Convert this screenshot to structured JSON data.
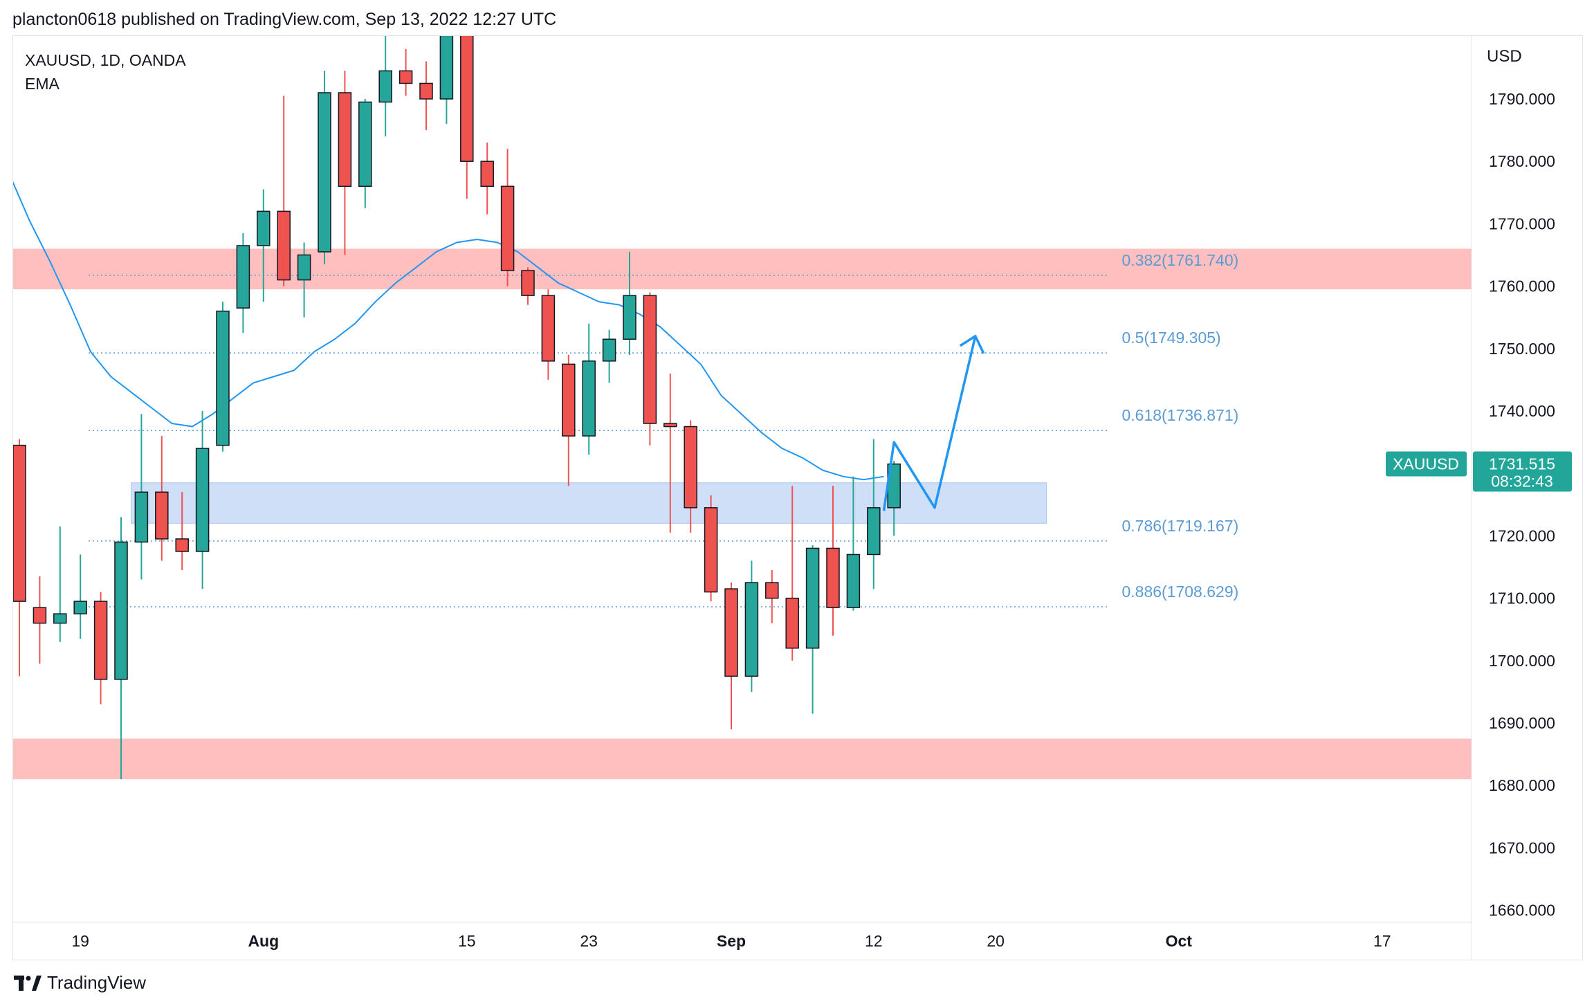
{
  "header": {
    "published_text": "plancton0618 published on TradingView.com, Sep 13, 2022 12:27 UTC"
  },
  "legend": {
    "symbol_line": "XAUUSD, 1D, OANDA",
    "indicator": "EMA"
  },
  "footer": {
    "brand": "TradingView"
  },
  "colors": {
    "up": "#26a69a",
    "down": "#ef5350",
    "zone_red": "#ffbfbf",
    "zone_blue": "#c9dcf7",
    "ema": "#2196f3",
    "fib": "#5b9bd5",
    "price_tag": "#22a69a"
  },
  "chart_data": {
    "type": "candlestick",
    "currency_label": "USD",
    "ylim": [
      1656,
      1797
    ],
    "y_ticks": [
      "1790.000",
      "1780.000",
      "1770.000",
      "1760.000",
      "1750.000",
      "1740.000",
      "1730.000",
      "1720.000",
      "1710.000",
      "1700.000",
      "1690.000",
      "1680.000",
      "1670.000",
      "1660.000"
    ],
    "x_ticks": [
      {
        "label": "19",
        "i": 3
      },
      {
        "label": "Aug",
        "i": 12,
        "bold": true
      },
      {
        "label": "15",
        "i": 22
      },
      {
        "label": "23",
        "i": 28
      },
      {
        "label": "Sep",
        "i": 35,
        "bold": true
      },
      {
        "label": "12",
        "i": 42
      },
      {
        "label": "20",
        "i": 48
      },
      {
        "label": "Oct",
        "i": 57,
        "bold": true
      },
      {
        "label": "17",
        "i": 67
      }
    ],
    "candles": [
      {
        "o": 1734.5,
        "h": 1735.5,
        "l": 1697.5,
        "c": 1709.5
      },
      {
        "o": 1708.5,
        "h": 1713.5,
        "l": 1699.5,
        "c": 1706.0
      },
      {
        "o": 1706.0,
        "h": 1721.5,
        "l": 1703.0,
        "c": 1707.5
      },
      {
        "o": 1707.5,
        "h": 1717.0,
        "l": 1703.5,
        "c": 1709.5
      },
      {
        "o": 1709.5,
        "h": 1711.0,
        "l": 1693.0,
        "c": 1697.0
      },
      {
        "o": 1697.0,
        "h": 1723.0,
        "l": 1681.0,
        "c": 1719.0
      },
      {
        "o": 1719.0,
        "h": 1739.5,
        "l": 1713.0,
        "c": 1727.0
      },
      {
        "o": 1727.0,
        "h": 1736.0,
        "l": 1716.0,
        "c": 1719.5
      },
      {
        "o": 1719.5,
        "h": 1727.0,
        "l": 1714.5,
        "c": 1717.5
      },
      {
        "o": 1717.5,
        "h": 1740.0,
        "l": 1711.5,
        "c": 1734.0
      },
      {
        "o": 1734.5,
        "h": 1757.5,
        "l": 1733.5,
        "c": 1756.0
      },
      {
        "o": 1756.5,
        "h": 1768.5,
        "l": 1752.5,
        "c": 1766.5
      },
      {
        "o": 1766.5,
        "h": 1775.5,
        "l": 1757.5,
        "c": 1772.0
      },
      {
        "o": 1772.0,
        "h": 1790.5,
        "l": 1760.0,
        "c": 1761.0
      },
      {
        "o": 1761.0,
        "h": 1767.0,
        "l": 1755.0,
        "c": 1765.0
      },
      {
        "o": 1765.5,
        "h": 1794.5,
        "l": 1763.5,
        "c": 1791.0
      },
      {
        "o": 1791.0,
        "h": 1794.5,
        "l": 1765.0,
        "c": 1776.0
      },
      {
        "o": 1776.0,
        "h": 1790.0,
        "l": 1772.5,
        "c": 1789.5
      },
      {
        "o": 1789.5,
        "h": 1802.0,
        "l": 1784.0,
        "c": 1794.5
      },
      {
        "o": 1794.5,
        "h": 1798.0,
        "l": 1790.5,
        "c": 1792.5
      },
      {
        "o": 1792.5,
        "h": 1796.0,
        "l": 1785.0,
        "c": 1790.0
      },
      {
        "o": 1790.0,
        "h": 1805.0,
        "l": 1786.0,
        "c": 1803.0
      },
      {
        "o": 1803.0,
        "h": 1805.0,
        "l": 1774.0,
        "c": 1780.0
      },
      {
        "o": 1780.0,
        "h": 1783.0,
        "l": 1771.5,
        "c": 1776.0
      },
      {
        "o": 1776.0,
        "h": 1782.0,
        "l": 1760.0,
        "c": 1762.5
      },
      {
        "o": 1762.5,
        "h": 1763.0,
        "l": 1757.0,
        "c": 1758.5
      },
      {
        "o": 1758.5,
        "h": 1759.5,
        "l": 1745.0,
        "c": 1748.0
      },
      {
        "o": 1747.5,
        "h": 1749.0,
        "l": 1728.0,
        "c": 1736.0
      },
      {
        "o": 1736.0,
        "h": 1754.0,
        "l": 1733.0,
        "c": 1748.0
      },
      {
        "o": 1748.0,
        "h": 1753.0,
        "l": 1744.5,
        "c": 1751.5
      },
      {
        "o": 1751.5,
        "h": 1765.5,
        "l": 1749.0,
        "c": 1758.5
      },
      {
        "o": 1758.5,
        "h": 1759.0,
        "l": 1734.5,
        "c": 1738.0
      },
      {
        "o": 1738.0,
        "h": 1746.0,
        "l": 1720.5,
        "c": 1737.5
      },
      {
        "o": 1737.5,
        "h": 1738.5,
        "l": 1720.5,
        "c": 1724.5
      },
      {
        "o": 1724.5,
        "h": 1726.5,
        "l": 1709.5,
        "c": 1711.0
      },
      {
        "o": 1711.5,
        "h": 1712.5,
        "l": 1689.0,
        "c": 1697.5
      },
      {
        "o": 1697.5,
        "h": 1716.0,
        "l": 1695.0,
        "c": 1712.5
      },
      {
        "o": 1712.5,
        "h": 1714.5,
        "l": 1706.0,
        "c": 1710.0
      },
      {
        "o": 1710.0,
        "h": 1728.0,
        "l": 1700.0,
        "c": 1702.0
      },
      {
        "o": 1702.0,
        "h": 1718.5,
        "l": 1691.5,
        "c": 1718.0
      },
      {
        "o": 1718.0,
        "h": 1728.0,
        "l": 1704.0,
        "c": 1708.5
      },
      {
        "o": 1708.5,
        "h": 1729.5,
        "l": 1708.0,
        "c": 1717.0
      },
      {
        "o": 1717.0,
        "h": 1735.5,
        "l": 1711.5,
        "c": 1724.5
      },
      {
        "o": 1724.5,
        "h": 1732.0,
        "l": 1720.0,
        "c": 1731.5
      }
    ],
    "ema": [
      1778.0,
      1770.5,
      1764.0,
      1757.0,
      1749.5,
      1745.5,
      1743.0,
      1740.5,
      1738.0,
      1737.5,
      1739.5,
      1742.0,
      1744.5,
      1745.5,
      1746.5,
      1749.5,
      1751.5,
      1754.0,
      1757.5,
      1760.5,
      1763.0,
      1765.5,
      1767.0,
      1767.5,
      1767.0,
      1765.5,
      1763.0,
      1760.5,
      1759.0,
      1757.5,
      1757.0,
      1755.5,
      1753.5,
      1750.5,
      1747.5,
      1742.5,
      1739.5,
      1736.5,
      1734.0,
      1732.5,
      1730.5,
      1729.5,
      1729.0,
      1729.5
    ],
    "zones": [
      {
        "kind": "red",
        "top": 1766.0,
        "bottom": 1759.5,
        "i_start": -0.5,
        "i_end": 72
      },
      {
        "kind": "red",
        "top": 1687.5,
        "bottom": 1681.0,
        "i_start": -0.5,
        "i_end": 72
      },
      {
        "kind": "blue",
        "top": 1728.5,
        "bottom": 1722.0,
        "i_start": 5.5,
        "i_end": 50.5
      }
    ],
    "fib_levels": [
      {
        "label": "0.382(1761.740)",
        "value": 1761.74
      },
      {
        "label": "0.5(1749.305)",
        "value": 1749.305
      },
      {
        "label": "0.618(1736.871)",
        "value": 1736.871
      },
      {
        "label": "0.786(1719.167)",
        "value": 1719.167
      },
      {
        "label": "0.886(1708.629)",
        "value": 1708.629
      }
    ],
    "projection": [
      [
        42.5,
        1724.0
      ],
      [
        43.0,
        1735.0
      ],
      [
        45.0,
        1724.5
      ],
      [
        47.0,
        1752.0
      ]
    ],
    "current_price": {
      "symbol": "XAUUSD",
      "value": "1731.515",
      "countdown": "08:32:43",
      "y": 1731.515
    }
  }
}
